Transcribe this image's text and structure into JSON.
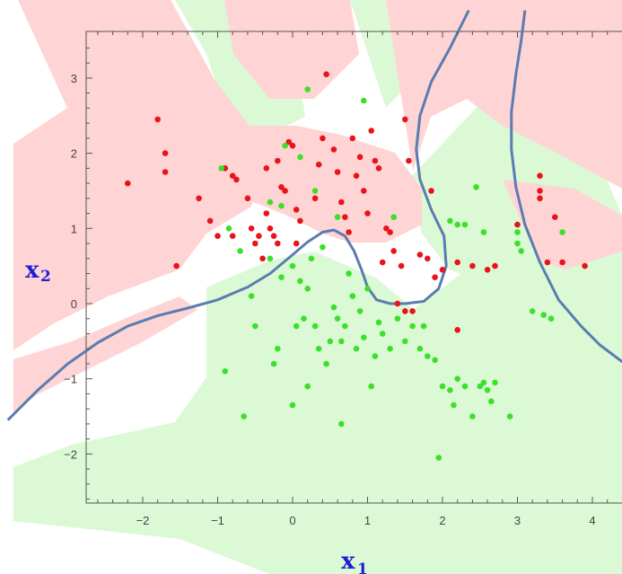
{
  "chart_data": {
    "type": "scatter",
    "title": "",
    "xlabel": {
      "base": "x",
      "sub": "1"
    },
    "ylabel": {
      "base": "x",
      "sub": "2"
    },
    "xlim": [
      -2.9,
      4.4
    ],
    "ylim": [
      -2.6,
      3.6
    ],
    "xticks": [
      {
        "value": -2,
        "label": "−2"
      },
      {
        "value": -1,
        "label": "−1"
      },
      {
        "value": 0,
        "label": "0"
      },
      {
        "value": 1,
        "label": "1"
      },
      {
        "value": 2,
        "label": "2"
      },
      {
        "value": 3,
        "label": "3"
      },
      {
        "value": 4,
        "label": "4"
      }
    ],
    "yticks": [
      {
        "value": -2,
        "label": "−2"
      },
      {
        "value": -1,
        "label": "−1"
      },
      {
        "value": 0,
        "label": "0"
      },
      {
        "value": 1,
        "label": "1"
      },
      {
        "value": 2,
        "label": "2"
      },
      {
        "value": 3,
        "label": "3"
      }
    ],
    "grid": false,
    "colors": {
      "red_points": "#e8141a",
      "green_points": "#3ce02a",
      "red_region": "#ffd4d4",
      "green_region": "#dcf9d6",
      "boundary": "#5a7db0",
      "axis_label": "#1f1fd6"
    },
    "series": [
      {
        "color": "red",
        "points": [
          [
            -2.2,
            1.6
          ],
          [
            -1.8,
            2.45
          ],
          [
            -1.7,
            2.0
          ],
          [
            -1.7,
            1.75
          ],
          [
            -1.55,
            0.5
          ],
          [
            -1.25,
            1.4
          ],
          [
            -1.1,
            1.1
          ],
          [
            -1.0,
            0.9
          ],
          [
            -0.9,
            1.8
          ],
          [
            -0.8,
            1.7
          ],
          [
            -0.75,
            1.65
          ],
          [
            -0.6,
            1.4
          ],
          [
            -0.55,
            1.0
          ],
          [
            -0.5,
            0.8
          ],
          [
            -0.45,
            0.9
          ],
          [
            -0.4,
            0.6
          ],
          [
            -0.35,
            1.2
          ],
          [
            -0.3,
            1.0
          ],
          [
            -0.25,
            0.9
          ],
          [
            -0.2,
            0.8
          ],
          [
            -0.15,
            1.55
          ],
          [
            -0.1,
            1.5
          ],
          [
            -0.05,
            2.15
          ],
          [
            0.0,
            2.1
          ],
          [
            0.05,
            1.25
          ],
          [
            0.1,
            1.1
          ],
          [
            0.05,
            0.8
          ],
          [
            -0.35,
            1.8
          ],
          [
            -0.2,
            1.9
          ],
          [
            0.3,
            1.4
          ],
          [
            0.35,
            1.85
          ],
          [
            0.4,
            2.2
          ],
          [
            0.45,
            3.05
          ],
          [
            0.55,
            2.05
          ],
          [
            0.6,
            1.75
          ],
          [
            0.65,
            1.35
          ],
          [
            0.7,
            1.15
          ],
          [
            0.75,
            0.95
          ],
          [
            0.8,
            2.2
          ],
          [
            0.85,
            1.7
          ],
          [
            0.9,
            1.95
          ],
          [
            0.95,
            1.5
          ],
          [
            1.0,
            1.2
          ],
          [
            1.05,
            2.3
          ],
          [
            1.1,
            1.9
          ],
          [
            1.15,
            1.8
          ],
          [
            1.25,
            1.0
          ],
          [
            1.3,
            0.95
          ],
          [
            1.35,
            0.7
          ],
          [
            1.45,
            0.5
          ],
          [
            1.5,
            2.45
          ],
          [
            1.55,
            1.9
          ],
          [
            1.4,
            0.0
          ],
          [
            1.5,
            -0.1
          ],
          [
            1.6,
            -0.1
          ],
          [
            1.8,
            0.6
          ],
          [
            1.9,
            0.35
          ],
          [
            2.0,
            0.45
          ],
          [
            2.2,
            -0.35
          ],
          [
            2.4,
            0.5
          ],
          [
            2.6,
            0.45
          ],
          [
            2.7,
            0.5
          ],
          [
            3.0,
            1.05
          ],
          [
            3.3,
            1.7
          ],
          [
            3.3,
            1.5
          ],
          [
            3.3,
            1.4
          ],
          [
            3.4,
            0.55
          ],
          [
            3.5,
            1.15
          ],
          [
            3.6,
            0.55
          ],
          [
            3.9,
            0.5
          ],
          [
            -0.8,
            0.9
          ],
          [
            1.2,
            0.55
          ],
          [
            1.7,
            0.65
          ],
          [
            1.85,
            1.5
          ],
          [
            2.2,
            0.55
          ]
        ]
      },
      {
        "color": "green",
        "points": [
          [
            -0.9,
            -0.9
          ],
          [
            -0.95,
            1.8
          ],
          [
            -0.7,
            0.7
          ],
          [
            -0.55,
            0.1
          ],
          [
            -0.5,
            -0.3
          ],
          [
            -0.3,
            0.6
          ],
          [
            -0.25,
            -0.8
          ],
          [
            -0.2,
            -0.6
          ],
          [
            -0.15,
            1.3
          ],
          [
            -0.1,
            2.1
          ],
          [
            0.1,
            1.95
          ],
          [
            0.0,
            0.5
          ],
          [
            0.05,
            -0.3
          ],
          [
            0.1,
            0.3
          ],
          [
            0.15,
            -0.2
          ],
          [
            0.2,
            -1.1
          ],
          [
            0.25,
            0.6
          ],
          [
            0.3,
            -0.3
          ],
          [
            0.35,
            -0.6
          ],
          [
            0.4,
            0.75
          ],
          [
            0.45,
            -0.8
          ],
          [
            0.5,
            -0.5
          ],
          [
            0.6,
            -0.2
          ],
          [
            0.65,
            -0.5
          ],
          [
            0.7,
            -0.3
          ],
          [
            0.75,
            0.4
          ],
          [
            0.8,
            0.1
          ],
          [
            0.85,
            -0.6
          ],
          [
            0.9,
            -0.1
          ],
          [
            0.95,
            -0.45
          ],
          [
            1.0,
            0.2
          ],
          [
            1.05,
            -1.1
          ],
          [
            1.1,
            -0.7
          ],
          [
            1.2,
            -0.4
          ],
          [
            1.3,
            -0.6
          ],
          [
            1.4,
            -0.2
          ],
          [
            1.5,
            -0.5
          ],
          [
            1.6,
            -0.3
          ],
          [
            1.7,
            -0.6
          ],
          [
            1.75,
            -0.3
          ],
          [
            1.8,
            -0.7
          ],
          [
            1.9,
            -0.75
          ],
          [
            1.95,
            -2.05
          ],
          [
            2.0,
            -1.1
          ],
          [
            2.1,
            -1.15
          ],
          [
            2.15,
            -1.35
          ],
          [
            2.2,
            -1.0
          ],
          [
            2.3,
            -1.1
          ],
          [
            2.4,
            -1.5
          ],
          [
            2.5,
            -1.1
          ],
          [
            2.55,
            -1.05
          ],
          [
            2.6,
            -1.15
          ],
          [
            2.65,
            -1.3
          ],
          [
            2.9,
            -1.5
          ],
          [
            0.65,
            -1.6
          ],
          [
            0.0,
            -1.35
          ],
          [
            -0.3,
            1.35
          ],
          [
            0.2,
            2.85
          ],
          [
            0.95,
            2.7
          ],
          [
            0.6,
            1.15
          ],
          [
            0.3,
            1.5
          ],
          [
            1.35,
            1.15
          ],
          [
            2.2,
            1.05
          ],
          [
            2.3,
            1.05
          ],
          [
            2.45,
            1.55
          ],
          [
            2.55,
            0.95
          ],
          [
            3.0,
            0.95
          ],
          [
            3.0,
            0.8
          ],
          [
            3.05,
            0.7
          ],
          [
            3.2,
            -0.1
          ],
          [
            3.35,
            -0.15
          ],
          [
            3.45,
            -0.2
          ],
          [
            3.6,
            0.95
          ],
          [
            -0.85,
            1.0
          ],
          [
            -0.15,
            0.35
          ],
          [
            0.2,
            0.2
          ],
          [
            0.55,
            -0.05
          ],
          [
            1.15,
            -0.25
          ],
          [
            2.1,
            1.1
          ],
          [
            2.7,
            -1.05
          ],
          [
            -0.65,
            -1.5
          ]
        ]
      }
    ],
    "decision_boundary": [
      {
        "name": "",
        "points": [
          [
            -3.8,
            -1.55
          ],
          [
            -3.4,
            -1.15
          ],
          [
            -3.0,
            -0.8
          ],
          [
            -2.6,
            -0.52
          ],
          [
            -2.2,
            -0.3
          ],
          [
            -1.8,
            -0.16
          ],
          [
            -1.4,
            -0.06
          ],
          [
            -1.0,
            0.05
          ],
          [
            -0.6,
            0.22
          ],
          [
            -0.3,
            0.4
          ],
          [
            0.0,
            0.65
          ],
          [
            0.2,
            0.82
          ],
          [
            0.4,
            0.95
          ],
          [
            0.55,
            0.98
          ],
          [
            0.7,
            0.9
          ],
          [
            0.82,
            0.7
          ],
          [
            0.92,
            0.45
          ],
          [
            1.0,
            0.22
          ],
          [
            1.12,
            0.05
          ],
          [
            1.3,
            0.0
          ],
          [
            1.5,
            0.0
          ],
          [
            1.75,
            0.03
          ],
          [
            1.95,
            0.2
          ],
          [
            2.05,
            0.5
          ],
          [
            2.02,
            0.9
          ],
          [
            1.85,
            1.25
          ],
          [
            1.7,
            1.65
          ],
          [
            1.65,
            2.05
          ],
          [
            1.7,
            2.5
          ],
          [
            1.85,
            2.95
          ],
          [
            2.1,
            3.4
          ],
          [
            2.35,
            3.9
          ]
        ]
      },
      {
        "name": "",
        "points": [
          [
            3.1,
            3.9
          ],
          [
            3.05,
            3.5
          ],
          [
            2.98,
            3.05
          ],
          [
            2.92,
            2.55
          ],
          [
            2.92,
            2.05
          ],
          [
            2.98,
            1.55
          ],
          [
            3.1,
            1.05
          ],
          [
            3.3,
            0.55
          ],
          [
            3.55,
            0.05
          ],
          [
            3.85,
            -0.3
          ],
          [
            4.1,
            -0.55
          ],
          [
            4.5,
            -0.85
          ]
        ]
      }
    ]
  }
}
